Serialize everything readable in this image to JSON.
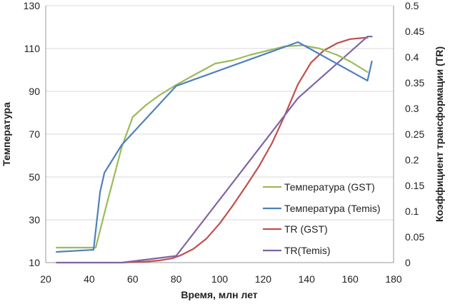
{
  "chart_data": {
    "type": "line",
    "xlabel": "Время, млн  лет",
    "ylabel_left": "Температура",
    "ylabel_right": "Коэффициент трансформации (TR)",
    "xlim": [
      20,
      180
    ],
    "ylim_left": [
      10,
      130
    ],
    "ylim_right": [
      0,
      0.5
    ],
    "x_ticks": [
      "20",
      "40",
      "60",
      "80",
      "100",
      "120",
      "140",
      "160",
      "180"
    ],
    "y_left_ticks": [
      "10",
      "30",
      "50",
      "70",
      "90",
      "110",
      "130"
    ],
    "y_right_ticks": [
      "0",
      "0.05",
      "0.1",
      "0.15",
      "0.2",
      "0.25",
      "0.3",
      "0.35",
      "0.4",
      "0.45",
      "0.5"
    ],
    "grid": "horizontal",
    "legend_position": "center-right",
    "series": [
      {
        "name": "Температура (GST)",
        "axis": "left",
        "color": "#9bbb59",
        "x": [
          25,
          28,
          42,
          43,
          48,
          55,
          60,
          66,
          72,
          80,
          88,
          98,
          106,
          114,
          122,
          130,
          138,
          146,
          154,
          160,
          168
        ],
        "y": [
          17,
          17,
          17,
          17,
          37,
          64,
          78,
          83.5,
          88,
          93,
          97.5,
          103,
          104.5,
          107,
          109,
          111,
          111.5,
          110,
          107,
          104,
          99
        ]
      },
      {
        "name": "Температура (Temis)",
        "axis": "left",
        "color": "#4f81bd",
        "x": [
          25,
          42,
          45,
          47,
          55,
          80,
          136,
          168,
          170
        ],
        "y": [
          15,
          16,
          43,
          52,
          65,
          92.5,
          113,
          95,
          104
        ]
      },
      {
        "name": "TR (GST)",
        "axis": "right",
        "color": "#c0504d",
        "x": [
          55,
          60,
          66,
          72,
          78,
          82,
          88,
          94,
          100,
          106,
          112,
          118,
          124,
          130,
          136,
          142,
          148,
          154,
          160,
          165,
          168
        ],
        "y": [
          0,
          0.001,
          0.002,
          0.004,
          0.008,
          0.014,
          0.027,
          0.047,
          0.076,
          0.111,
          0.148,
          0.187,
          0.232,
          0.287,
          0.347,
          0.389,
          0.413,
          0.427,
          0.435,
          0.437,
          0.438
        ]
      },
      {
        "name": "TR(Temis)",
        "axis": "right",
        "color": "#8064a2",
        "x": [
          25,
          55,
          80,
          136,
          168,
          170
        ],
        "y": [
          0,
          0,
          0.013,
          0.32,
          0.44,
          0.44
        ]
      }
    ]
  }
}
